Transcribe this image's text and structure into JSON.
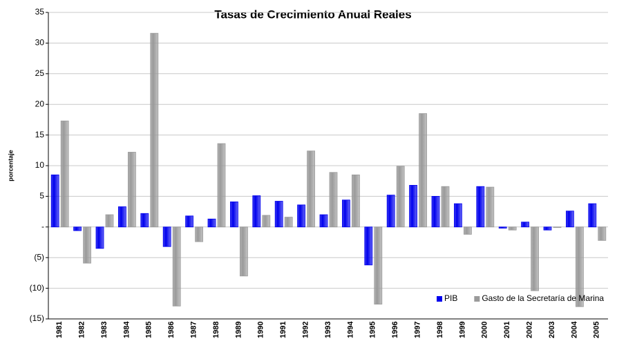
{
  "chart_data": {
    "type": "bar",
    "title": "Tasas de Crecimiento Anual Reales",
    "y_label": "porcentaje",
    "categories": [
      "1981",
      "1982",
      "1983",
      "1984",
      "1985",
      "1986",
      "1987",
      "1988",
      "1989",
      "1990",
      "1991",
      "1992",
      "1993",
      "1994",
      "1995",
      "1996",
      "1997",
      "1998",
      "1999",
      "2000",
      "2001",
      "2002",
      "2003",
      "2004",
      "2005"
    ],
    "series": [
      {
        "name": "PIB",
        "color": "#0000ee",
        "values": [
          8.5,
          -0.6,
          -3.5,
          3.3,
          2.2,
          -3.2,
          1.8,
          1.3,
          4.1,
          5.1,
          4.2,
          3.6,
          2.0,
          4.4,
          -6.2,
          5.2,
          6.8,
          5.0,
          3.8,
          6.6,
          -0.2,
          0.8,
          -0.5,
          2.6,
          3.8
        ]
      },
      {
        "name": "Gasto de la Secretaría de Marina",
        "color": "#9a9a9a",
        "values": [
          17.3,
          -5.9,
          2.0,
          12.2,
          31.6,
          -12.9,
          -2.4,
          13.6,
          -8.0,
          1.9,
          1.6,
          12.4,
          8.9,
          8.5,
          -12.6,
          9.9,
          18.5,
          6.6,
          -1.2,
          6.5,
          -0.5,
          -10.4,
          -0.1,
          -13.0,
          -2.2
        ]
      }
    ],
    "ylim": [
      -15,
      35
    ],
    "yticks": [
      {
        "value": -15,
        "label": "(15)"
      },
      {
        "value": -10,
        "label": "(10)"
      },
      {
        "value": -5,
        "label": "(5)"
      },
      {
        "value": 0,
        "label": "-"
      },
      5,
      10,
      15,
      20,
      25,
      30,
      35
    ],
    "grid": true,
    "legend": "lower right"
  }
}
